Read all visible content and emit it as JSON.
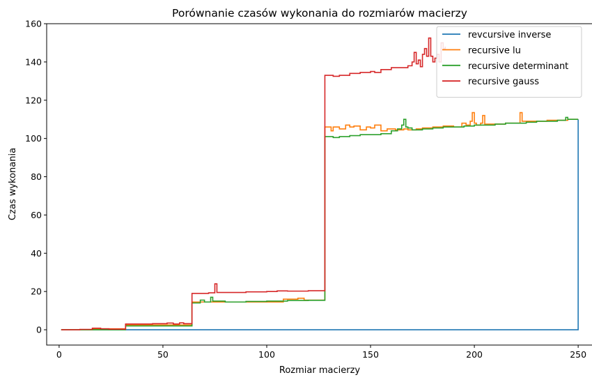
{
  "chart_data": {
    "type": "line",
    "step": true,
    "title": "Porównanie czasów wykonania do rozmiarów macierzy",
    "xlabel": "Rozmiar macierzy",
    "ylabel": "Czas wykonania",
    "xlim": [
      -6,
      257
    ],
    "ylim": [
      -8,
      160
    ],
    "xticks": [
      0,
      50,
      100,
      150,
      200,
      250
    ],
    "yticks": [
      0,
      20,
      40,
      60,
      80,
      100,
      120,
      140,
      160
    ],
    "grid": false,
    "legend_position": "top-right",
    "series": [
      {
        "name": "revcursive inverse",
        "color": "#1f77b4",
        "points": [
          [
            1,
            0
          ],
          [
            250,
            110
          ]
        ]
      },
      {
        "name": "recursive lu",
        "color": "#ff7f0e",
        "points": [
          [
            1,
            0
          ],
          [
            16,
            0.3
          ],
          [
            20,
            0.5
          ],
          [
            32,
            2.5
          ],
          [
            64,
            14.5
          ],
          [
            108,
            16
          ],
          [
            115,
            16.5
          ],
          [
            118,
            15.5
          ],
          [
            128,
            106
          ],
          [
            131,
            104
          ],
          [
            132,
            106
          ],
          [
            135,
            105
          ],
          [
            138,
            107
          ],
          [
            140,
            106
          ],
          [
            142,
            106.5
          ],
          [
            145,
            104.5
          ],
          [
            148,
            106
          ],
          [
            150,
            105.5
          ],
          [
            152,
            107
          ],
          [
            155,
            104
          ],
          [
            158,
            105
          ],
          [
            162,
            104.5
          ],
          [
            166,
            105
          ],
          [
            168,
            104.5
          ],
          [
            172,
            105
          ],
          [
            175,
            105.5
          ],
          [
            180,
            106
          ],
          [
            185,
            106.5
          ],
          [
            190,
            106
          ],
          [
            194,
            108
          ],
          [
            196,
            107
          ],
          [
            198,
            109
          ],
          [
            199,
            113.5
          ],
          [
            200,
            108
          ],
          [
            201,
            107
          ],
          [
            203,
            108
          ],
          [
            204,
            112
          ],
          [
            205,
            107.5
          ],
          [
            210,
            107.5
          ],
          [
            215,
            108
          ],
          [
            220,
            108
          ],
          [
            222,
            113.5
          ],
          [
            223,
            109
          ],
          [
            228,
            109
          ],
          [
            235,
            109.5
          ],
          [
            240,
            109.5
          ],
          [
            245,
            110
          ],
          [
            250,
            110
          ]
        ]
      },
      {
        "name": "recursive determinant",
        "color": "#2ca02c",
        "points": [
          [
            1,
            0
          ],
          [
            32,
            2
          ],
          [
            64,
            14
          ],
          [
            68,
            15.5
          ],
          [
            70,
            14.5
          ],
          [
            73,
            17
          ],
          [
            74,
            15
          ],
          [
            80,
            14.5
          ],
          [
            90,
            14.8
          ],
          [
            100,
            15
          ],
          [
            110,
            15.3
          ],
          [
            120,
            15.4
          ],
          [
            128,
            101
          ],
          [
            132,
            100.5
          ],
          [
            135,
            101
          ],
          [
            140,
            101.5
          ],
          [
            145,
            102
          ],
          [
            150,
            102
          ],
          [
            155,
            102.5
          ],
          [
            160,
            104
          ],
          [
            163,
            105
          ],
          [
            165,
            107
          ],
          [
            166,
            110
          ],
          [
            167,
            106
          ],
          [
            168,
            105.5
          ],
          [
            170,
            104.5
          ],
          [
            175,
            105
          ],
          [
            180,
            105.5
          ],
          [
            185,
            106
          ],
          [
            190,
            106
          ],
          [
            195,
            106.5
          ],
          [
            200,
            107
          ],
          [
            205,
            107
          ],
          [
            210,
            107.5
          ],
          [
            215,
            108
          ],
          [
            220,
            108
          ],
          [
            225,
            108.5
          ],
          [
            230,
            109
          ],
          [
            235,
            109
          ],
          [
            240,
            109.5
          ],
          [
            244,
            111
          ],
          [
            245,
            110
          ],
          [
            250,
            110
          ]
        ]
      },
      {
        "name": "recursive gauss",
        "color": "#d62728",
        "points": [
          [
            1,
            0
          ],
          [
            10,
            0.2
          ],
          [
            16,
            0.8
          ],
          [
            20,
            0.5
          ],
          [
            24,
            0.3
          ],
          [
            32,
            3
          ],
          [
            45,
            3.2
          ],
          [
            52,
            3.5
          ],
          [
            55,
            3
          ],
          [
            58,
            3.6
          ],
          [
            60,
            3.2
          ],
          [
            64,
            19
          ],
          [
            72,
            19.3
          ],
          [
            75,
            24
          ],
          [
            76,
            19.5
          ],
          [
            80,
            19.5
          ],
          [
            90,
            19.8
          ],
          [
            100,
            20
          ],
          [
            105,
            20.3
          ],
          [
            110,
            20.2
          ],
          [
            120,
            20.4
          ],
          [
            128,
            133
          ],
          [
            132,
            132.5
          ],
          [
            135,
            133
          ],
          [
            140,
            134
          ],
          [
            145,
            134.5
          ],
          [
            150,
            135
          ],
          [
            152,
            134.5
          ],
          [
            155,
            136
          ],
          [
            160,
            137
          ],
          [
            165,
            137
          ],
          [
            168,
            138
          ],
          [
            170,
            140
          ],
          [
            171,
            145
          ],
          [
            172,
            139
          ],
          [
            173,
            141
          ],
          [
            174,
            137.5
          ],
          [
            175,
            144
          ],
          [
            176,
            147
          ],
          [
            177,
            143
          ],
          [
            178,
            152.5
          ],
          [
            179,
            143
          ],
          [
            180,
            140
          ],
          [
            181,
            142
          ],
          [
            182,
            144
          ],
          [
            183,
            140
          ],
          [
            184,
            150
          ],
          [
            185,
            147
          ],
          [
            186,
            148
          ]
        ]
      }
    ]
  }
}
